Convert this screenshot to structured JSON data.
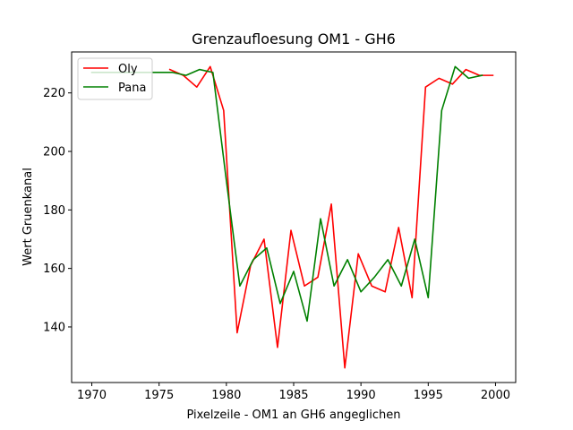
{
  "chart_data": {
    "type": "line",
    "title": "Grenzaufloesung OM1 - GH6",
    "xlabel": "Pixelzeile - OM1 an GH6 angeglichen",
    "ylabel": "Wert Gruenkanal",
    "xlim": [
      1968.5,
      2001.5
    ],
    "ylim": [
      121,
      234
    ],
    "xticks": [
      1970,
      1975,
      1980,
      1985,
      1990,
      1995,
      2000
    ],
    "yticks": [
      140,
      160,
      180,
      200,
      220
    ],
    "grid": false,
    "legend_position": "top-left",
    "series": [
      {
        "name": "Oly",
        "color": "#ff0000",
        "x": [
          1975.8,
          1976.8,
          1977.8,
          1978.8,
          1979.8,
          1980.8,
          1981.8,
          1982.8,
          1983.8,
          1984.8,
          1985.8,
          1986.8,
          1987.8,
          1988.8,
          1989.8,
          1990.8,
          1991.8,
          1992.8,
          1993.8,
          1994.8,
          1995.8,
          1996.8,
          1997.8,
          1998.8,
          1999.8
        ],
        "y": [
          228,
          226,
          222,
          229,
          214,
          138,
          161,
          170,
          133,
          173,
          154,
          157,
          182,
          126,
          165,
          154,
          152,
          174,
          150,
          222,
          225,
          223,
          228,
          226,
          226
        ]
      },
      {
        "name": "Pana",
        "color": "#008000",
        "x": [
          1970,
          1971,
          1972,
          1973,
          1974,
          1975,
          1976,
          1977,
          1978,
          1979,
          1980,
          1981,
          1982,
          1983,
          1984,
          1985,
          1986,
          1987,
          1988,
          1989,
          1990,
          1991,
          1992,
          1993,
          1994,
          1995,
          1996,
          1997,
          1998,
          1999
        ],
        "y": [
          227,
          227,
          227,
          227,
          227,
          227,
          227,
          226,
          228,
          227,
          190,
          154,
          163,
          167,
          148,
          159,
          142,
          177,
          154,
          163,
          152,
          157,
          163,
          154,
          170,
          150,
          214,
          229,
          225,
          226
        ]
      }
    ]
  }
}
